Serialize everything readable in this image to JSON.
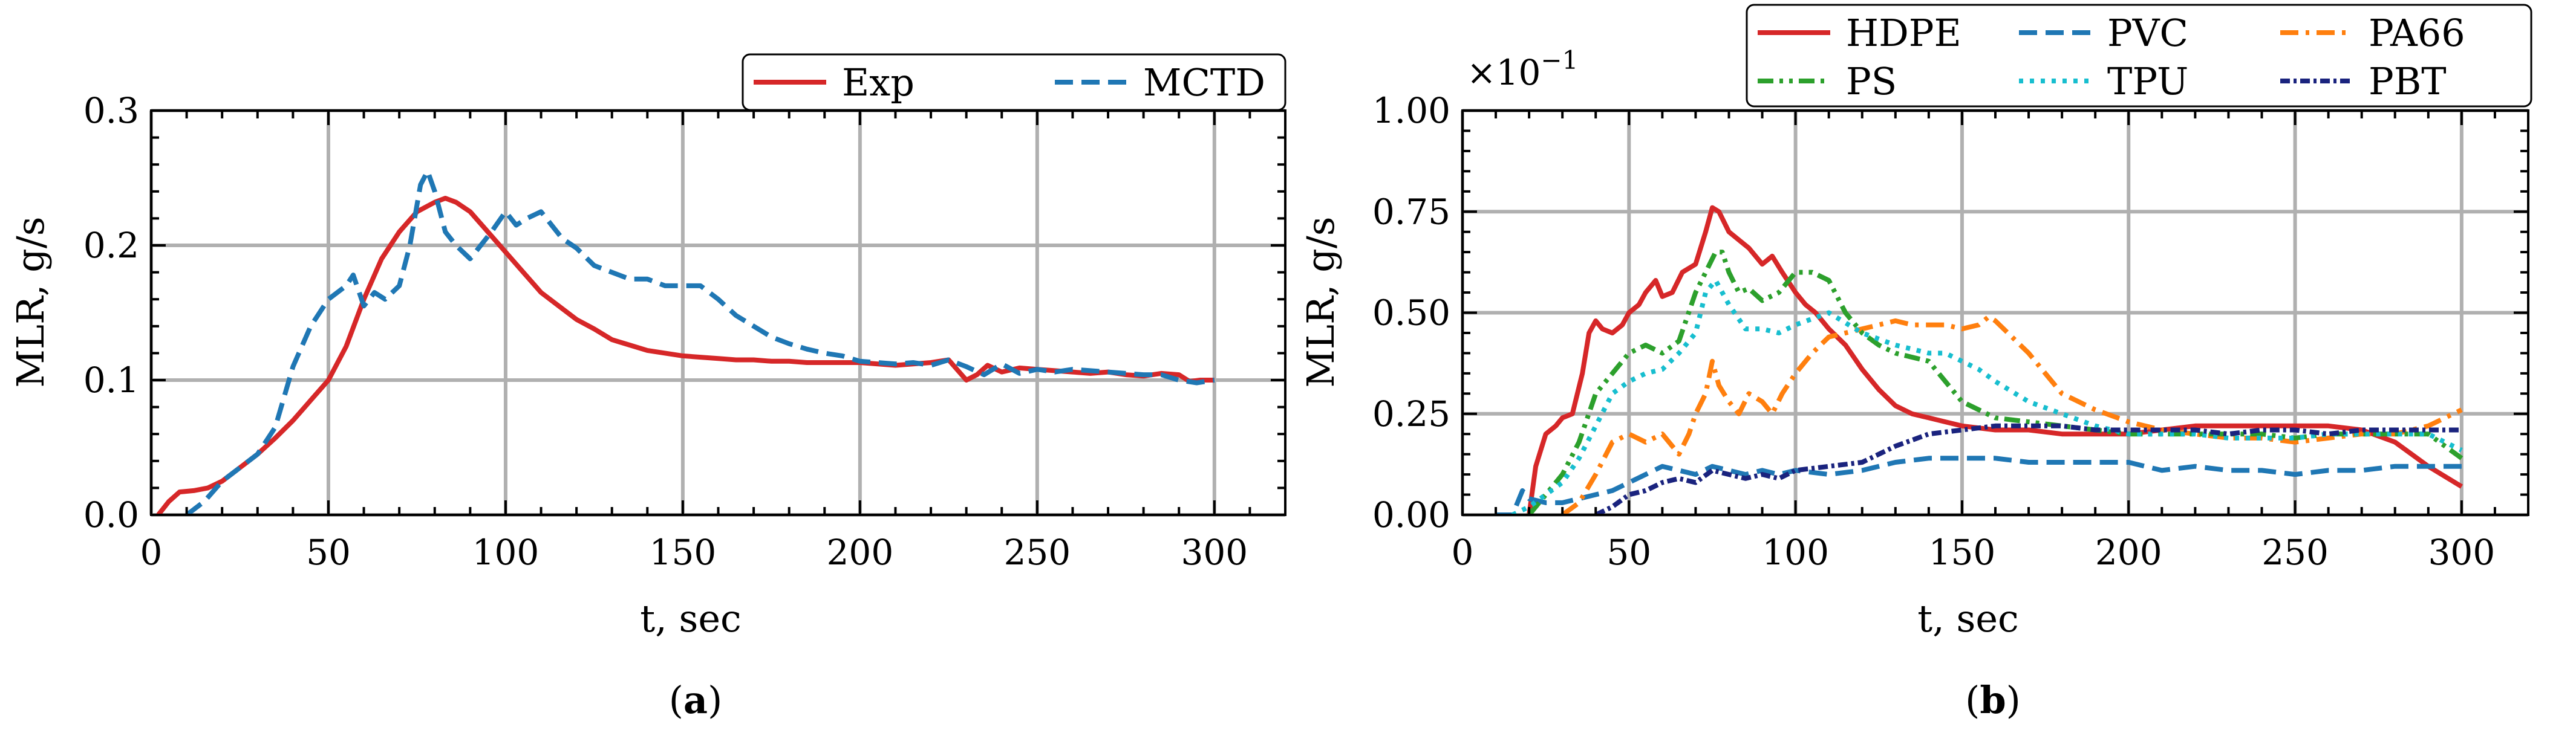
{
  "figure": {
    "panels": [
      {
        "label_open": "(",
        "label_letter": "a",
        "label_close": ")"
      },
      {
        "label_open": "(",
        "label_letter": "b",
        "label_close": ")"
      }
    ]
  },
  "chart_data": [
    {
      "type": "line",
      "panel": "a",
      "title": "",
      "xlabel": "t, sec",
      "ylabel": "MLR, g/s",
      "xlim": [
        0,
        320
      ],
      "ylim": [
        0,
        0.3
      ],
      "xticks": [
        0,
        50,
        100,
        150,
        200,
        250,
        300
      ],
      "xtick_labels": [
        "0",
        "50",
        "100",
        "150",
        "200",
        "250",
        "300"
      ],
      "yticks": [
        0,
        0.1,
        0.2,
        0.3
      ],
      "ytick_labels": [
        "0.0",
        "0.1",
        "0.2",
        "0.3"
      ],
      "x_minor_step": 10,
      "y_minor_step": 0.02,
      "grid": true,
      "legend": {
        "position": "top-right",
        "columns": 2
      },
      "series": [
        {
          "name": "Exp",
          "color": "#d62728",
          "dash": "solid",
          "x": [
            2,
            5,
            8,
            12,
            16,
            20,
            25,
            30,
            35,
            40,
            45,
            50,
            55,
            60,
            65,
            70,
            75,
            80,
            83,
            86,
            90,
            95,
            100,
            105,
            110,
            115,
            120,
            125,
            130,
            135,
            140,
            145,
            150,
            155,
            160,
            165,
            170,
            175,
            180,
            185,
            190,
            195,
            200,
            205,
            210,
            215,
            220,
            225,
            230,
            233,
            236,
            240,
            245,
            250,
            255,
            260,
            265,
            270,
            275,
            280,
            285,
            290,
            293,
            296,
            300
          ],
          "y": [
            0.0,
            0.01,
            0.017,
            0.018,
            0.02,
            0.025,
            0.035,
            0.045,
            0.057,
            0.07,
            0.085,
            0.1,
            0.125,
            0.16,
            0.19,
            0.21,
            0.225,
            0.232,
            0.235,
            0.232,
            0.225,
            0.21,
            0.195,
            0.18,
            0.165,
            0.155,
            0.145,
            0.138,
            0.13,
            0.126,
            0.122,
            0.12,
            0.118,
            0.117,
            0.116,
            0.115,
            0.115,
            0.114,
            0.114,
            0.113,
            0.113,
            0.113,
            0.113,
            0.112,
            0.111,
            0.112,
            0.113,
            0.115,
            0.1,
            0.104,
            0.111,
            0.106,
            0.109,
            0.108,
            0.107,
            0.106,
            0.105,
            0.106,
            0.104,
            0.103,
            0.105,
            0.104,
            0.099,
            0.1,
            0.1
          ]
        },
        {
          "name": "MCTD",
          "color": "#1f77b4",
          "dash": "dashed",
          "x": [
            10,
            15,
            20,
            25,
            30,
            35,
            40,
            45,
            50,
            55,
            57,
            60,
            63,
            66,
            70,
            73,
            76,
            78,
            80,
            83,
            86,
            90,
            93,
            96,
            100,
            103,
            106,
            110,
            113,
            116,
            120,
            125,
            130,
            135,
            140,
            145,
            150,
            155,
            160,
            165,
            170,
            175,
            180,
            185,
            190,
            195,
            200,
            205,
            210,
            215,
            220,
            225,
            230,
            235,
            240,
            245,
            250,
            255,
            260,
            265,
            270,
            275,
            280,
            285,
            290,
            295,
            300
          ],
          "y": [
            0.0,
            0.01,
            0.025,
            0.035,
            0.045,
            0.065,
            0.11,
            0.14,
            0.16,
            0.17,
            0.178,
            0.155,
            0.165,
            0.16,
            0.17,
            0.2,
            0.245,
            0.255,
            0.24,
            0.21,
            0.2,
            0.19,
            0.2,
            0.21,
            0.225,
            0.215,
            0.22,
            0.225,
            0.215,
            0.205,
            0.198,
            0.185,
            0.18,
            0.175,
            0.175,
            0.17,
            0.17,
            0.17,
            0.16,
            0.148,
            0.14,
            0.132,
            0.127,
            0.123,
            0.12,
            0.118,
            0.114,
            0.113,
            0.112,
            0.113,
            0.111,
            0.115,
            0.11,
            0.104,
            0.112,
            0.105,
            0.108,
            0.106,
            0.108,
            0.107,
            0.106,
            0.105,
            0.104,
            0.104,
            0.1,
            0.098,
            0.1
          ]
        }
      ]
    },
    {
      "type": "line",
      "panel": "b",
      "title": "",
      "xlabel": "t, sec",
      "ylabel": "MLR, g/s",
      "y_multiplier_text": {
        "times": "×",
        "base": "10",
        "exponent": "−1"
      },
      "xlim": [
        0,
        320
      ],
      "ylim": [
        0,
        1.0
      ],
      "xticks": [
        0,
        50,
        100,
        150,
        200,
        250,
        300
      ],
      "xtick_labels": [
        "0",
        "50",
        "100",
        "150",
        "200",
        "250",
        "300"
      ],
      "yticks": [
        0,
        0.25,
        0.5,
        0.75,
        1.0
      ],
      "ytick_labels": [
        "0.00",
        "0.25",
        "0.50",
        "0.75",
        "1.00"
      ],
      "x_minor_step": 10,
      "y_minor_step": 0.05,
      "grid": true,
      "legend": {
        "position": "above-top-right",
        "columns": 3
      },
      "series": [
        {
          "name": "HDPE",
          "color": "#d62728",
          "dash": "solid",
          "x": [
            20,
            22,
            25,
            28,
            30,
            33,
            36,
            38,
            40,
            42,
            45,
            48,
            50,
            53,
            55,
            58,
            60,
            63,
            66,
            70,
            73,
            75,
            77,
            80,
            83,
            86,
            90,
            93,
            96,
            100,
            103,
            106,
            110,
            115,
            120,
            125,
            130,
            135,
            140,
            145,
            150,
            160,
            170,
            180,
            190,
            200,
            210,
            220,
            230,
            240,
            250,
            260,
            270,
            280,
            290,
            300
          ],
          "y": [
            0.0,
            0.12,
            0.2,
            0.22,
            0.24,
            0.25,
            0.35,
            0.45,
            0.48,
            0.46,
            0.45,
            0.47,
            0.5,
            0.52,
            0.55,
            0.58,
            0.54,
            0.55,
            0.6,
            0.62,
            0.7,
            0.76,
            0.75,
            0.7,
            0.68,
            0.66,
            0.62,
            0.64,
            0.6,
            0.55,
            0.52,
            0.5,
            0.46,
            0.42,
            0.36,
            0.31,
            0.27,
            0.25,
            0.24,
            0.23,
            0.22,
            0.21,
            0.21,
            0.2,
            0.2,
            0.2,
            0.21,
            0.22,
            0.22,
            0.22,
            0.22,
            0.22,
            0.21,
            0.18,
            0.12,
            0.07
          ]
        },
        {
          "name": "PVC",
          "color": "#1f77b4",
          "dash": "dashed",
          "x": [
            10,
            15,
            18,
            20,
            25,
            30,
            35,
            40,
            45,
            50,
            55,
            60,
            65,
            70,
            75,
            80,
            85,
            90,
            95,
            100,
            110,
            120,
            130,
            140,
            150,
            160,
            170,
            180,
            190,
            200,
            210,
            220,
            230,
            240,
            250,
            260,
            270,
            280,
            290,
            300
          ],
          "y": [
            0.0,
            0.0,
            0.06,
            0.04,
            0.03,
            0.03,
            0.04,
            0.05,
            0.06,
            0.08,
            0.1,
            0.12,
            0.11,
            0.1,
            0.12,
            0.11,
            0.1,
            0.11,
            0.1,
            0.11,
            0.1,
            0.11,
            0.13,
            0.14,
            0.14,
            0.14,
            0.13,
            0.13,
            0.13,
            0.13,
            0.11,
            0.12,
            0.11,
            0.11,
            0.1,
            0.11,
            0.11,
            0.12,
            0.12,
            0.12
          ]
        },
        {
          "name": "PA66",
          "color": "#ff7f0e",
          "dash": "dashdot",
          "x": [
            30,
            35,
            40,
            45,
            50,
            55,
            60,
            65,
            68,
            70,
            73,
            75,
            77,
            80,
            83,
            86,
            90,
            93,
            96,
            100,
            105,
            110,
            115,
            120,
            125,
            130,
            135,
            140,
            145,
            150,
            155,
            158,
            160,
            165,
            170,
            175,
            180,
            190,
            200,
            210,
            220,
            230,
            240,
            250,
            260,
            270,
            280,
            290,
            300
          ],
          "y": [
            0.0,
            0.03,
            0.1,
            0.18,
            0.2,
            0.18,
            0.2,
            0.15,
            0.2,
            0.25,
            0.3,
            0.38,
            0.32,
            0.28,
            0.25,
            0.3,
            0.28,
            0.25,
            0.3,
            0.35,
            0.4,
            0.44,
            0.45,
            0.46,
            0.47,
            0.48,
            0.47,
            0.47,
            0.47,
            0.46,
            0.47,
            0.49,
            0.48,
            0.44,
            0.4,
            0.35,
            0.3,
            0.26,
            0.23,
            0.21,
            0.2,
            0.19,
            0.19,
            0.18,
            0.19,
            0.2,
            0.2,
            0.22,
            0.26
          ]
        },
        {
          "name": "PS",
          "color": "#2ca02c",
          "dash": "dashdotdot",
          "x": [
            20,
            25,
            30,
            35,
            40,
            45,
            50,
            55,
            60,
            65,
            70,
            73,
            76,
            78,
            80,
            83,
            86,
            90,
            95,
            100,
            105,
            110,
            115,
            120,
            125,
            130,
            140,
            150,
            160,
            170,
            180,
            190,
            200,
            210,
            220,
            230,
            240,
            250,
            260,
            270,
            280,
            290,
            300
          ],
          "y": [
            0.0,
            0.05,
            0.1,
            0.18,
            0.3,
            0.35,
            0.4,
            0.42,
            0.4,
            0.43,
            0.55,
            0.6,
            0.65,
            0.65,
            0.6,
            0.55,
            0.56,
            0.53,
            0.55,
            0.6,
            0.6,
            0.58,
            0.5,
            0.45,
            0.42,
            0.4,
            0.38,
            0.28,
            0.24,
            0.23,
            0.22,
            0.21,
            0.2,
            0.2,
            0.2,
            0.2,
            0.2,
            0.19,
            0.2,
            0.2,
            0.2,
            0.2,
            0.14
          ]
        },
        {
          "name": "TPU",
          "color": "#17becf",
          "dash": "dotted",
          "x": [
            15,
            20,
            25,
            30,
            35,
            40,
            45,
            50,
            55,
            60,
            65,
            70,
            73,
            76,
            80,
            85,
            90,
            95,
            100,
            110,
            120,
            130,
            140,
            145,
            150,
            155,
            160,
            170,
            180,
            190,
            200,
            210,
            220,
            230,
            240,
            250,
            260,
            270,
            280,
            290,
            300
          ],
          "y": [
            0.0,
            0.02,
            0.05,
            0.08,
            0.14,
            0.22,
            0.3,
            0.33,
            0.35,
            0.36,
            0.4,
            0.45,
            0.55,
            0.58,
            0.52,
            0.46,
            0.46,
            0.45,
            0.47,
            0.5,
            0.45,
            0.42,
            0.4,
            0.4,
            0.38,
            0.36,
            0.33,
            0.28,
            0.25,
            0.22,
            0.2,
            0.2,
            0.2,
            0.19,
            0.19,
            0.19,
            0.2,
            0.2,
            0.2,
            0.2,
            0.16
          ]
        },
        {
          "name": "PBT",
          "color": "#1a237e",
          "dash": "densedashdot",
          "x": [
            40,
            45,
            50,
            55,
            60,
            65,
            70,
            75,
            80,
            85,
            90,
            95,
            100,
            110,
            120,
            130,
            140,
            150,
            160,
            170,
            180,
            190,
            200,
            210,
            220,
            230,
            240,
            250,
            260,
            270,
            280,
            290,
            300
          ],
          "y": [
            0.0,
            0.02,
            0.05,
            0.06,
            0.08,
            0.09,
            0.08,
            0.11,
            0.1,
            0.09,
            0.1,
            0.09,
            0.11,
            0.12,
            0.13,
            0.17,
            0.2,
            0.21,
            0.22,
            0.22,
            0.22,
            0.21,
            0.21,
            0.21,
            0.21,
            0.2,
            0.21,
            0.21,
            0.2,
            0.21,
            0.21,
            0.21,
            0.21
          ]
        }
      ]
    }
  ]
}
